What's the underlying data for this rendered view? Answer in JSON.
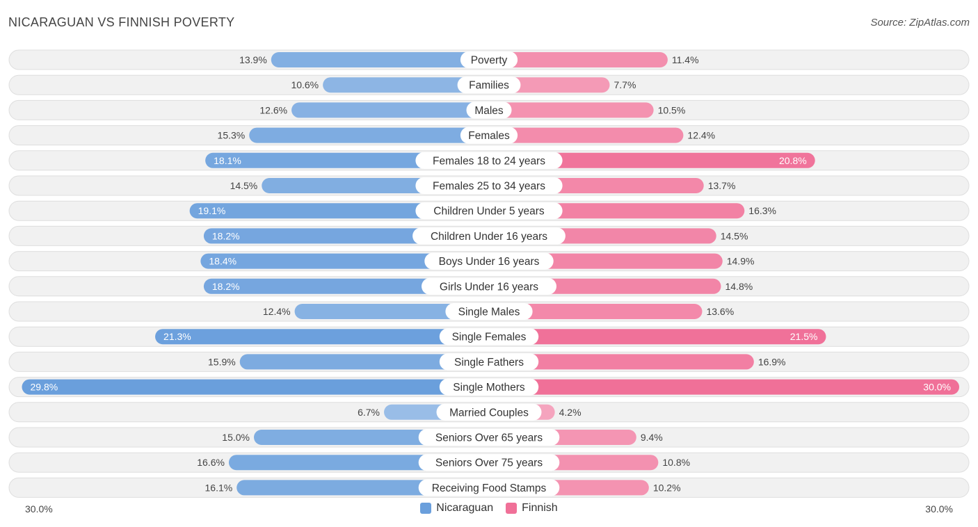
{
  "header": {
    "title": "NICARAGUAN VS FINNISH POVERTY",
    "source": "Source: ZipAtlas.com"
  },
  "colors": {
    "left": "#6a9fdc",
    "right": "#f07098"
  },
  "chart_data": {
    "type": "bar",
    "orientation": "horizontal-diverging",
    "title": "NICARAGUAN VS FINNISH POVERTY",
    "categories": [
      "Poverty",
      "Families",
      "Males",
      "Females",
      "Females 18 to 24 years",
      "Females 25 to 34 years",
      "Children Under 5 years",
      "Children Under 16 years",
      "Boys Under 16 years",
      "Girls Under 16 years",
      "Single Males",
      "Single Females",
      "Single Fathers",
      "Single Mothers",
      "Married Couples",
      "Seniors Over 65 years",
      "Seniors Over 75 years",
      "Receiving Food Stamps"
    ],
    "series": [
      {
        "name": "Nicaraguan",
        "values": [
          13.9,
          10.6,
          12.6,
          15.3,
          18.1,
          14.5,
          19.1,
          18.2,
          18.4,
          18.2,
          12.4,
          21.3,
          15.9,
          29.8,
          6.7,
          15.0,
          16.6,
          16.1
        ],
        "labels": [
          "13.9%",
          "10.6%",
          "12.6%",
          "15.3%",
          "18.1%",
          "14.5%",
          "19.1%",
          "18.2%",
          "18.4%",
          "18.2%",
          "12.4%",
          "21.3%",
          "15.9%",
          "29.8%",
          "6.7%",
          "15.0%",
          "16.6%",
          "16.1%"
        ]
      },
      {
        "name": "Finnish",
        "values": [
          11.4,
          7.7,
          10.5,
          12.4,
          20.8,
          13.7,
          16.3,
          14.5,
          14.9,
          14.8,
          13.6,
          21.5,
          16.9,
          30.0,
          4.2,
          9.4,
          10.8,
          10.2
        ],
        "labels": [
          "11.4%",
          "7.7%",
          "10.5%",
          "12.4%",
          "20.8%",
          "13.7%",
          "16.3%",
          "14.5%",
          "14.9%",
          "14.8%",
          "13.6%",
          "21.5%",
          "16.9%",
          "30.0%",
          "4.2%",
          "9.4%",
          "10.8%",
          "10.2%"
        ]
      }
    ],
    "xlim": [
      0,
      30
    ],
    "axis_left_label": "30.0%",
    "axis_right_label": "30.0%",
    "legend": [
      "Nicaraguan",
      "Finnish"
    ],
    "legend_position": "bottom-center"
  }
}
